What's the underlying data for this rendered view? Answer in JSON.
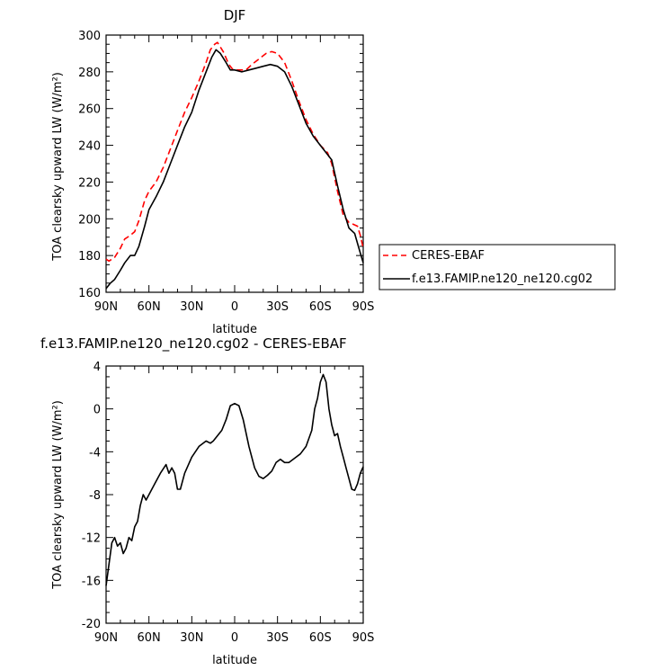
{
  "chart_data": [
    {
      "type": "line",
      "title": "DJF",
      "xlabel": "latitude",
      "ylabel": "TOA clearsky upward LW (W/m²)",
      "xlim": [
        90,
        -90
      ],
      "ylim": [
        160,
        300
      ],
      "yticks": [
        160,
        180,
        200,
        220,
        240,
        260,
        280,
        300
      ],
      "xticks": [
        90,
        60,
        30,
        0,
        -30,
        -60,
        -90
      ],
      "xticklabels": [
        "90N",
        "60N",
        "30N",
        "0",
        "30S",
        "60S",
        "90S"
      ],
      "legend": {
        "placement": "outside-right"
      },
      "grid": false,
      "series": [
        {
          "name": "CERES-EBAF",
          "color": "#ff0000",
          "dash": true,
          "points": [
            [
              90,
              178
            ],
            [
              88,
              177
            ],
            [
              84,
              179
            ],
            [
              80,
              184
            ],
            [
              77,
              189
            ],
            [
              73,
              191
            ],
            [
              70,
              193
            ],
            [
              67,
              199
            ],
            [
              63,
              210
            ],
            [
              60,
              215
            ],
            [
              55,
              220
            ],
            [
              50,
              228
            ],
            [
              45,
              238
            ],
            [
              40,
              248
            ],
            [
              35,
              258
            ],
            [
              30,
              266
            ],
            [
              25,
              275
            ],
            [
              20,
              285
            ],
            [
              17,
              292
            ],
            [
              14,
              295
            ],
            [
              12,
              296
            ],
            [
              8,
              291
            ],
            [
              4,
              284
            ],
            [
              1,
              281
            ],
            [
              -4,
              281
            ],
            [
              -8,
              281
            ],
            [
              -12,
              284
            ],
            [
              -17,
              287
            ],
            [
              -22,
              290
            ],
            [
              -26,
              291
            ],
            [
              -30,
              290
            ],
            [
              -35,
              285
            ],
            [
              -40,
              275
            ],
            [
              -45,
              264
            ],
            [
              -50,
              254
            ],
            [
              -55,
              246
            ],
            [
              -60,
              240
            ],
            [
              -65,
              236
            ],
            [
              -68,
              230
            ],
            [
              -72,
              215
            ],
            [
              -76,
              202
            ],
            [
              -80,
              198
            ],
            [
              -83,
              197
            ],
            [
              -86,
              196
            ],
            [
              -88,
              191
            ],
            [
              -90,
              184
            ]
          ]
        },
        {
          "name": "f.e13.FAMIP.ne120_ne120.cg02",
          "color": "#000000",
          "dash": false,
          "points": [
            [
              90,
              162
            ],
            [
              87,
              165
            ],
            [
              84,
              167
            ],
            [
              80,
              172
            ],
            [
              77,
              176
            ],
            [
              73,
              180
            ],
            [
              70,
              180
            ],
            [
              67,
              185
            ],
            [
              63,
              196
            ],
            [
              60,
              205
            ],
            [
              55,
              212
            ],
            [
              50,
              220
            ],
            [
              45,
              230
            ],
            [
              40,
              240
            ],
            [
              35,
              250
            ],
            [
              30,
              258
            ],
            [
              25,
              270
            ],
            [
              20,
              280
            ],
            [
              16,
              288
            ],
            [
              13,
              292
            ],
            [
              10,
              290
            ],
            [
              6,
              285
            ],
            [
              3,
              281
            ],
            [
              0,
              281
            ],
            [
              -5,
              280
            ],
            [
              -10,
              281
            ],
            [
              -15,
              282
            ],
            [
              -20,
              283
            ],
            [
              -25,
              284
            ],
            [
              -30,
              283
            ],
            [
              -35,
              280
            ],
            [
              -40,
              272
            ],
            [
              -45,
              262
            ],
            [
              -50,
              252
            ],
            [
              -55,
              245
            ],
            [
              -60,
              240
            ],
            [
              -64,
              236
            ],
            [
              -68,
              232
            ],
            [
              -72,
              218
            ],
            [
              -76,
              205
            ],
            [
              -80,
              195
            ],
            [
              -84,
              192
            ],
            [
              -87,
              184
            ],
            [
              -90,
              176
            ]
          ]
        }
      ]
    },
    {
      "type": "line",
      "title": "f.e13.FAMIP.ne120_ne120.cg02 - CERES-EBAF",
      "xlabel": "latitude",
      "ylabel": "TOA clearsky upward LW (W/m²)",
      "xlim": [
        90,
        -90
      ],
      "ylim": [
        -20,
        4
      ],
      "yticks": [
        -20,
        -16,
        -12,
        -8,
        -4,
        0,
        4
      ],
      "xticks": [
        90,
        60,
        30,
        0,
        -30,
        -60,
        -90
      ],
      "xticklabels": [
        "90N",
        "60N",
        "30N",
        "0",
        "30S",
        "60S",
        "90S"
      ],
      "grid": false,
      "series": [
        {
          "color": "#000000",
          "dash": false,
          "points": [
            [
              90,
              -16.5
            ],
            [
              88,
              -14.5
            ],
            [
              86,
              -12.5
            ],
            [
              84,
              -12
            ],
            [
              82,
              -12.8
            ],
            [
              80,
              -12.5
            ],
            [
              78,
              -13.5
            ],
            [
              76,
              -13
            ],
            [
              74,
              -12
            ],
            [
              72,
              -12.3
            ],
            [
              70,
              -11
            ],
            [
              68,
              -10.5
            ],
            [
              66,
              -9
            ],
            [
              64,
              -8
            ],
            [
              62,
              -8.5
            ],
            [
              60,
              -8
            ],
            [
              56,
              -7
            ],
            [
              52,
              -6
            ],
            [
              48,
              -5.2
            ],
            [
              46,
              -6
            ],
            [
              44,
              -5.5
            ],
            [
              42,
              -6
            ],
            [
              40,
              -7.5
            ],
            [
              38,
              -7.5
            ],
            [
              35,
              -6
            ],
            [
              30,
              -4.5
            ],
            [
              25,
              -3.5
            ],
            [
              20,
              -3
            ],
            [
              17,
              -3.2
            ],
            [
              15,
              -3
            ],
            [
              12,
              -2.5
            ],
            [
              9,
              -2
            ],
            [
              6,
              -1
            ],
            [
              3,
              0.3
            ],
            [
              0,
              0.5
            ],
            [
              -3,
              0.3
            ],
            [
              -6,
              -1
            ],
            [
              -10,
              -3.5
            ],
            [
              -14,
              -5.5
            ],
            [
              -17,
              -6.3
            ],
            [
              -20,
              -6.5
            ],
            [
              -23,
              -6.2
            ],
            [
              -26,
              -5.8
            ],
            [
              -29,
              -5
            ],
            [
              -32,
              -4.7
            ],
            [
              -35,
              -5
            ],
            [
              -38,
              -5
            ],
            [
              -42,
              -4.6
            ],
            [
              -46,
              -4.2
            ],
            [
              -50,
              -3.5
            ],
            [
              -54,
              -2
            ],
            [
              -56,
              0
            ],
            [
              -58,
              1
            ],
            [
              -60,
              2.5
            ],
            [
              -62,
              3.2
            ],
            [
              -64,
              2.5
            ],
            [
              -66,
              0
            ],
            [
              -68,
              -1.5
            ],
            [
              -70,
              -2.5
            ],
            [
              -72,
              -2.3
            ],
            [
              -74,
              -3.5
            ],
            [
              -76,
              -4.5
            ],
            [
              -78,
              -5.5
            ],
            [
              -80,
              -6.5
            ],
            [
              -82,
              -7.5
            ],
            [
              -84,
              -7.6
            ],
            [
              -86,
              -7
            ],
            [
              -88,
              -6
            ],
            [
              -90,
              -5.4
            ]
          ]
        }
      ]
    }
  ]
}
